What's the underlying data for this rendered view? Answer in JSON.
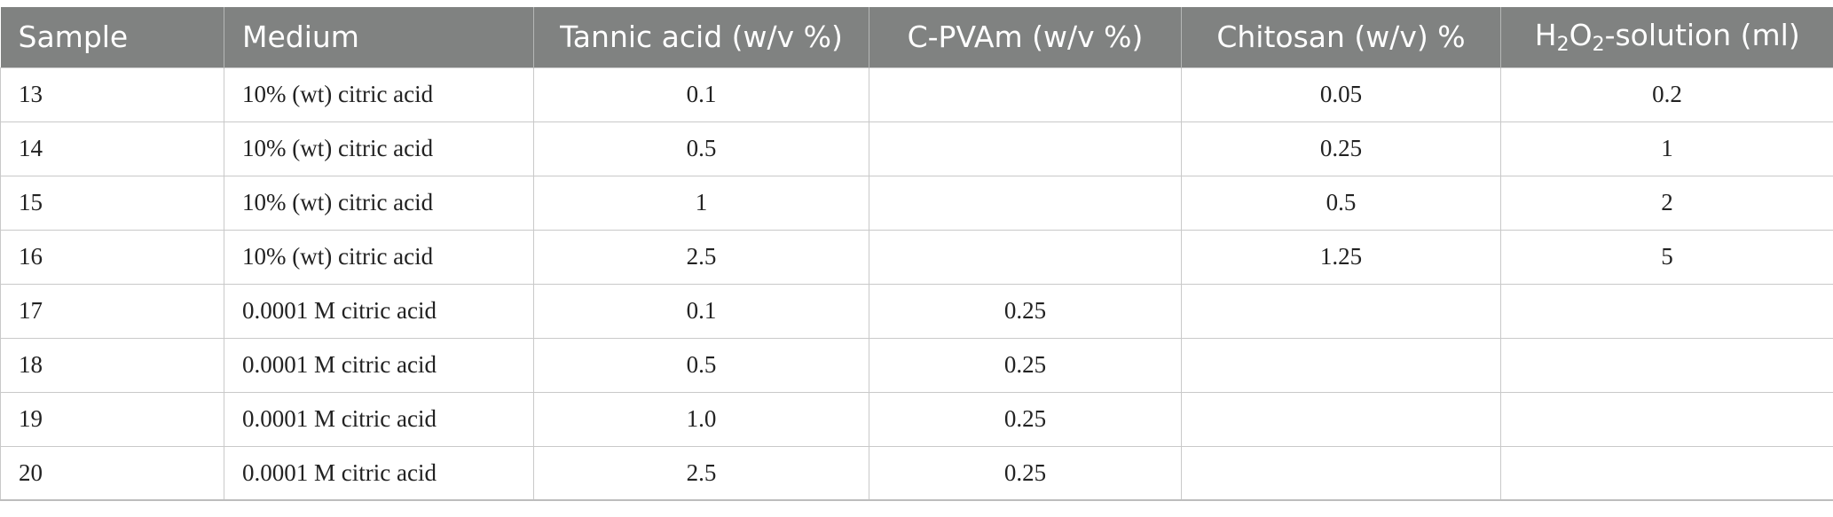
{
  "table": {
    "headers": {
      "sample": "Sample",
      "medium": "Medium",
      "tannic": "Tannic acid (w/v %)",
      "cpvam": "C-PVAm (w/v %)",
      "chitosan": "Chitosan (w/v) %",
      "h2o2": {
        "part1": "H",
        "sub1": "2",
        "part2": "O",
        "sub2": "2",
        "part3": "-solution (ml)"
      }
    },
    "rows": [
      {
        "sample": "13",
        "medium": "10% (wt) citric acid",
        "tannic": "0.1",
        "cpvam": "",
        "chitosan": "0.05",
        "h2o2": "0.2"
      },
      {
        "sample": "14",
        "medium": "10% (wt) citric acid",
        "tannic": "0.5",
        "cpvam": "",
        "chitosan": "0.25",
        "h2o2": "1"
      },
      {
        "sample": "15",
        "medium": "10% (wt) citric acid",
        "tannic": "1",
        "cpvam": "",
        "chitosan": "0.5",
        "h2o2": "2"
      },
      {
        "sample": "16",
        "medium": "10% (wt) citric acid",
        "tannic": "2.5",
        "cpvam": "",
        "chitosan": "1.25",
        "h2o2": "5"
      },
      {
        "sample": "17",
        "medium": "0.0001 M citric acid",
        "tannic": "0.1",
        "cpvam": "0.25",
        "chitosan": "",
        "h2o2": ""
      },
      {
        "sample": "18",
        "medium": "0.0001 M citric acid",
        "tannic": "0.5",
        "cpvam": "0.25",
        "chitosan": "",
        "h2o2": ""
      },
      {
        "sample": "19",
        "medium": "0.0001 M citric acid",
        "tannic": "1.0",
        "cpvam": "0.25",
        "chitosan": "",
        "h2o2": ""
      },
      {
        "sample": "20",
        "medium": "0.0001 M citric acid",
        "tannic": "2.5",
        "cpvam": "0.25",
        "chitosan": "",
        "h2o2": ""
      }
    ]
  }
}
